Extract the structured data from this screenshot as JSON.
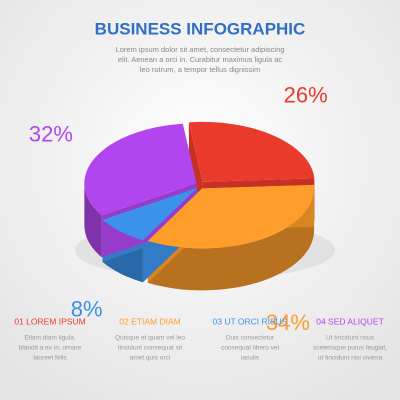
{
  "chart_data": {
    "type": "pie",
    "title": "BUSINESS INFOGRAPHIC",
    "subtitle": [
      "Lorem ipsum dolor sit amet, consectetur adipiscing",
      "elit. Aenean a orci in. Curabitur maximus ligula ac",
      "leo rutrum, a tempor tellus dignissim"
    ],
    "categories": [
      "01 LOREM IPSUM",
      "02 ETIAM DIAM",
      "03 UT ORCI RISUS",
      "04 SED ALIQUET"
    ],
    "descriptions": [
      [
        "Etiam diam ligula,",
        "blandit a ex in, ornare",
        "laoreet felis"
      ],
      [
        "Quisque et quam vel leo",
        "tincidunt consequat sit",
        "amet quis orci"
      ],
      [
        "Duis consectetur",
        "consequat libero vel",
        "iaculis"
      ],
      [
        "Ut tincidunt risus",
        "scelerisque purus feugiat,",
        "ut tincidunt nisi viverra"
      ]
    ],
    "values": [
      26,
      34,
      8,
      32
    ],
    "value_labels": [
      "26%",
      "34%",
      "8%",
      "32%"
    ],
    "colors": [
      "#ea3a2c",
      "#ff9d2a",
      "#3b92ea",
      "#b246ee"
    ]
  }
}
